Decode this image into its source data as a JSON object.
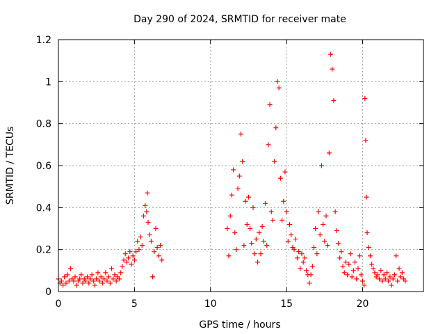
{
  "chart_data": {
    "type": "scatter",
    "title": "Day 290 of 2024, SRMTID for receiver mate",
    "xlabel": "GPS time / hours",
    "ylabel": "SRMTID / TECUs",
    "xlim": [
      0,
      24
    ],
    "ylim": [
      0,
      1.2
    ],
    "x_ticks": [
      0,
      5,
      10,
      15,
      20
    ],
    "x_tick_labels": [
      "0",
      "5",
      "10",
      "15",
      "20"
    ],
    "y_ticks": [
      0,
      0.2,
      0.4,
      0.6,
      0.8,
      1.0,
      1.2
    ],
    "y_tick_labels": [
      "0",
      "0.2",
      "0.4",
      "0.6",
      "0.8",
      "1",
      "1.2"
    ],
    "grid": true,
    "marker": "+",
    "series": [
      {
        "name": "SRMTID",
        "color": "#ff0000",
        "points": [
          [
            0.0,
            0.06
          ],
          [
            0.1,
            0.04
          ],
          [
            0.2,
            0.05
          ],
          [
            0.3,
            0.03
          ],
          [
            0.4,
            0.07
          ],
          [
            0.5,
            0.04
          ],
          [
            0.6,
            0.08
          ],
          [
            0.7,
            0.05
          ],
          [
            0.8,
            0.11
          ],
          [
            0.9,
            0.06
          ],
          [
            1.0,
            0.05
          ],
          [
            1.1,
            0.07
          ],
          [
            1.2,
            0.03
          ],
          [
            1.3,
            0.05
          ],
          [
            1.4,
            0.06
          ],
          [
            1.5,
            0.08
          ],
          [
            1.6,
            0.04
          ],
          [
            1.7,
            0.06
          ],
          [
            1.8,
            0.05
          ],
          [
            1.9,
            0.07
          ],
          [
            2.0,
            0.04
          ],
          [
            2.1,
            0.06
          ],
          [
            2.2,
            0.08
          ],
          [
            2.3,
            0.05
          ],
          [
            2.4,
            0.03
          ],
          [
            2.5,
            0.06
          ],
          [
            2.6,
            0.09
          ],
          [
            2.7,
            0.05
          ],
          [
            2.8,
            0.07
          ],
          [
            2.9,
            0.04
          ],
          [
            3.0,
            0.06
          ],
          [
            3.1,
            0.09
          ],
          [
            3.2,
            0.05
          ],
          [
            3.3,
            0.07
          ],
          [
            3.4,
            0.04
          ],
          [
            3.5,
            0.11
          ],
          [
            3.6,
            0.06
          ],
          [
            3.7,
            0.08
          ],
          [
            3.8,
            0.05
          ],
          [
            3.9,
            0.07
          ],
          [
            4.0,
            0.06
          ],
          [
            4.1,
            0.09
          ],
          [
            4.2,
            0.12
          ],
          [
            4.3,
            0.15
          ],
          [
            4.4,
            0.18
          ],
          [
            4.5,
            0.14
          ],
          [
            4.6,
            0.16
          ],
          [
            4.7,
            0.19
          ],
          [
            4.8,
            0.13
          ],
          [
            4.9,
            0.17
          ],
          [
            5.0,
            0.15
          ],
          [
            5.1,
            0.19
          ],
          [
            5.2,
            0.24
          ],
          [
            5.3,
            0.2
          ],
          [
            5.4,
            0.26
          ],
          [
            5.5,
            0.22
          ],
          [
            5.6,
            0.36
          ],
          [
            5.7,
            0.41
          ],
          [
            5.8,
            0.38
          ],
          [
            5.85,
            0.47
          ],
          [
            5.9,
            0.33
          ],
          [
            6.0,
            0.27
          ],
          [
            6.1,
            0.24
          ],
          [
            6.2,
            0.07
          ],
          [
            6.3,
            0.19
          ],
          [
            6.4,
            0.3
          ],
          [
            6.5,
            0.21
          ],
          [
            6.6,
            0.17
          ],
          [
            6.7,
            0.22
          ],
          [
            6.8,
            0.15
          ],
          [
            11.1,
            0.3
          ],
          [
            11.2,
            0.17
          ],
          [
            11.3,
            0.36
          ],
          [
            11.4,
            0.46
          ],
          [
            11.5,
            0.58
          ],
          [
            11.6,
            0.28
          ],
          [
            11.7,
            0.2
          ],
          [
            11.8,
            0.49
          ],
          [
            11.9,
            0.55
          ],
          [
            12.0,
            0.75
          ],
          [
            12.1,
            0.62
          ],
          [
            12.2,
            0.22
          ],
          [
            12.3,
            0.43
          ],
          [
            12.4,
            0.32
          ],
          [
            12.5,
            0.45
          ],
          [
            12.6,
            0.3
          ],
          [
            12.7,
            0.23
          ],
          [
            12.8,
            0.4
          ],
          [
            12.9,
            0.18
          ],
          [
            13.0,
            0.25
          ],
          [
            13.1,
            0.14
          ],
          [
            13.2,
            0.28
          ],
          [
            13.3,
            0.18
          ],
          [
            13.4,
            0.31
          ],
          [
            13.5,
            0.24
          ],
          [
            13.6,
            0.42
          ],
          [
            13.7,
            0.22
          ],
          [
            13.8,
            0.7
          ],
          [
            13.9,
            0.89
          ],
          [
            14.0,
            0.38
          ],
          [
            14.1,
            0.34
          ],
          [
            14.2,
            0.62
          ],
          [
            14.3,
            0.78
          ],
          [
            14.4,
            1.0
          ],
          [
            14.5,
            0.97
          ],
          [
            14.6,
            0.54
          ],
          [
            14.7,
            0.34
          ],
          [
            14.8,
            0.43
          ],
          [
            14.9,
            0.57
          ],
          [
            15.0,
            0.38
          ],
          [
            15.1,
            0.24
          ],
          [
            15.2,
            0.32
          ],
          [
            15.3,
            0.27
          ],
          [
            15.4,
            0.21
          ],
          [
            15.5,
            0.2
          ],
          [
            15.6,
            0.25
          ],
          [
            15.7,
            0.16
          ],
          [
            15.8,
            0.19
          ],
          [
            15.9,
            0.11
          ],
          [
            16.0,
            0.18
          ],
          [
            16.1,
            0.14
          ],
          [
            16.2,
            0.16
          ],
          [
            16.3,
            0.1
          ],
          [
            16.4,
            0.08
          ],
          [
            16.5,
            0.04
          ],
          [
            16.6,
            0.08
          ],
          [
            16.7,
            0.12
          ],
          [
            16.8,
            0.21
          ],
          [
            16.9,
            0.3
          ],
          [
            17.0,
            0.18
          ],
          [
            17.1,
            0.38
          ],
          [
            17.2,
            0.27
          ],
          [
            17.3,
            0.6
          ],
          [
            17.4,
            0.32
          ],
          [
            17.5,
            0.24
          ],
          [
            17.6,
            0.36
          ],
          [
            17.7,
            0.22
          ],
          [
            17.8,
            0.66
          ],
          [
            17.9,
            1.13
          ],
          [
            18.0,
            1.06
          ],
          [
            18.1,
            0.91
          ],
          [
            18.2,
            0.38
          ],
          [
            18.3,
            0.29
          ],
          [
            18.4,
            0.23
          ],
          [
            18.5,
            0.16
          ],
          [
            18.6,
            0.19
          ],
          [
            18.7,
            0.12
          ],
          [
            18.8,
            0.09
          ],
          [
            18.9,
            0.14
          ],
          [
            19.0,
            0.08
          ],
          [
            19.1,
            0.13
          ],
          [
            19.2,
            0.18
          ],
          [
            19.3,
            0.07
          ],
          [
            19.4,
            0.1
          ],
          [
            19.5,
            0.14
          ],
          [
            19.6,
            0.06
          ],
          [
            19.7,
            0.11
          ],
          [
            19.8,
            0.17
          ],
          [
            19.9,
            0.08
          ],
          [
            20.0,
            0.05
          ],
          [
            20.1,
            0.03
          ],
          [
            20.15,
            0.92
          ],
          [
            20.2,
            0.72
          ],
          [
            20.25,
            0.45
          ],
          [
            20.3,
            0.28
          ],
          [
            20.4,
            0.21
          ],
          [
            20.5,
            0.17
          ],
          [
            20.6,
            0.13
          ],
          [
            20.7,
            0.11
          ],
          [
            20.8,
            0.09
          ],
          [
            20.9,
            0.07
          ],
          [
            21.0,
            0.08
          ],
          [
            21.1,
            0.06
          ],
          [
            21.2,
            0.1
          ],
          [
            21.3,
            0.05
          ],
          [
            21.4,
            0.08
          ],
          [
            21.5,
            0.06
          ],
          [
            21.6,
            0.09
          ],
          [
            21.7,
            0.05
          ],
          [
            21.8,
            0.07
          ],
          [
            21.9,
            0.03
          ],
          [
            22.0,
            0.06
          ],
          [
            22.1,
            0.08
          ],
          [
            22.2,
            0.17
          ],
          [
            22.3,
            0.05
          ],
          [
            22.4,
            0.11
          ],
          [
            22.5,
            0.07
          ],
          [
            22.6,
            0.09
          ],
          [
            22.7,
            0.06
          ],
          [
            22.8,
            0.05
          ]
        ]
      }
    ]
  }
}
